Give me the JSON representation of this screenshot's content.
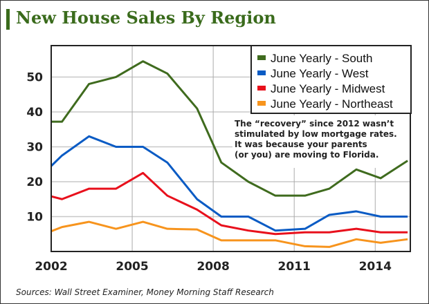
{
  "chart_data": {
    "type": "line",
    "title": "New House Sales By Region",
    "xlabel": "",
    "ylabel": "",
    "xlim": [
      2002,
      2015.3
    ],
    "ylim": [
      0,
      59
    ],
    "xticks": [
      2002,
      2005,
      2008,
      2011,
      2014
    ],
    "yticks": [
      10,
      20,
      30,
      40,
      50
    ],
    "grid": true,
    "legend_position": "top-right",
    "x": [
      2002,
      2002.4,
      2003.4,
      2004.4,
      2005.4,
      2006.3,
      2007.4,
      2008.3,
      2009.3,
      2010.3,
      2011.4,
      2012.3,
      2013.3,
      2014.2,
      2015.2
    ],
    "series": [
      {
        "name": "June Yearly - South",
        "color": "#3f6b1e",
        "values": [
          37.2,
          37.2,
          48,
          50,
          54.5,
          51,
          41,
          25.5,
          20,
          16,
          16,
          18,
          23.5,
          21,
          26
        ]
      },
      {
        "name": "June Yearly - West",
        "color": "#0a5bc4",
        "values": [
          24.5,
          27.5,
          33,
          30,
          30,
          25.5,
          15,
          10,
          10,
          6,
          6.5,
          10.5,
          11.5,
          10,
          10
        ]
      },
      {
        "name": "June Yearly - Midwest",
        "color": "#e8101c",
        "values": [
          15.8,
          15,
          18,
          18,
          22.5,
          16,
          12,
          7.5,
          6,
          5,
          5.5,
          5.5,
          6.5,
          5.5,
          5.5
        ]
      },
      {
        "name": "June Yearly - Northeast",
        "color": "#f7941d",
        "values": [
          5.8,
          7,
          8.5,
          6.5,
          8.5,
          6.5,
          6.3,
          3.2,
          3.2,
          3.2,
          1.5,
          1.3,
          3.5,
          2.5,
          3.5
        ]
      }
    ],
    "annotation": [
      "The “recovery” since 2012 wasn’t",
      "stimulated by low mortgage rates.",
      "It was because your parents",
      "(or you) are moving to Florida."
    ]
  },
  "source": "Sources: Wall Street Examiner, Money Morning Staff Research"
}
